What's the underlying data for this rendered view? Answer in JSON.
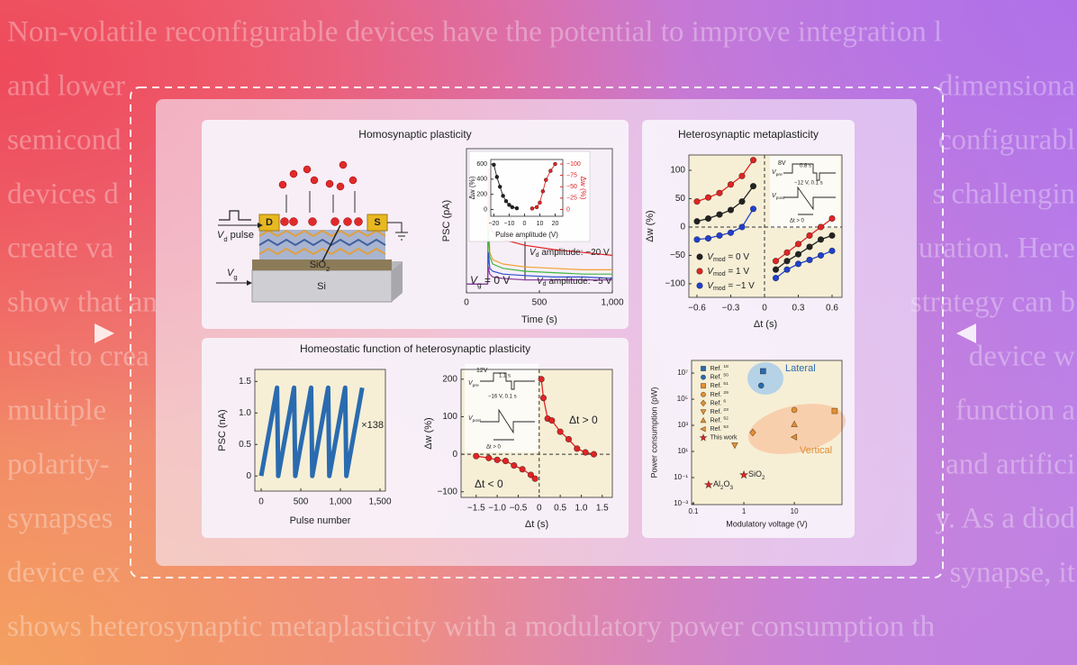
{
  "background_text": [
    [
      "Non-volatile reconfigurable devices have the potential to improve integration l"
    ],
    [
      "and lower",
      "dimensiona"
    ],
    [
      "semicond",
      "configurabl"
    ],
    [
      "devices d",
      "s challengin"
    ],
    [
      "create va",
      "uration. Here"
    ],
    [
      "show that an",
      "strategy can b"
    ],
    [
      "used to crea",
      "device w"
    ],
    [
      "multiple",
      "function a"
    ],
    [
      "polarity-",
      "and artifici"
    ],
    [
      "synapses",
      "y. As a diod"
    ],
    [
      "device ex",
      "synapse, it"
    ],
    [
      "shows heterosynaptic metaplasticity with a modulatory power consumption th"
    ]
  ],
  "panels": [
    {
      "title": "Homosynaptic plasticity",
      "color": "#d83a2a"
    },
    {
      "title": "Homeostatic function of heterosynaptic plasticity",
      "color": "#2060b0"
    },
    {
      "title": "Heterosynaptic metaplasticity",
      "color": "#2a8a3a"
    }
  ],
  "device_schematic": {
    "drain": "D",
    "source": "S",
    "drain_pulse": [
      {
        "i": "V"
      },
      {
        "sub": "d"
      },
      {
        "t": " pulse"
      }
    ],
    "gate": [
      {
        "i": "V"
      },
      {
        "sub": "g"
      }
    ],
    "oxide": [
      {
        "t": "SiO"
      },
      {
        "sub": "2"
      }
    ],
    "substrate": "Si"
  },
  "chart_data": [
    {
      "type": "line",
      "ylabel": "PSC (pA)",
      "xlabel": "Time (s)",
      "xlim": [
        0,
        1000
      ],
      "xticks": [
        0,
        500,
        {
          "value": 1000,
          "label": "1,000"
        }
      ],
      "ylim": [
        0,
        100
      ],
      "x": [
        0,
        145,
        150,
        160,
        180,
        250,
        400,
        600,
        800,
        1000
      ],
      "series": [
        {
          "color": "#e02424",
          "values": [
            6,
            6,
            86,
            48,
            42,
            37,
            33,
            30,
            28,
            26
          ]
        },
        {
          "color": "#f0a030",
          "values": [
            6,
            6,
            55,
            28,
            23,
            20,
            18,
            17,
            16,
            16
          ]
        },
        {
          "color": "#40b840",
          "values": [
            6,
            6,
            45,
            25,
            20,
            17,
            15,
            14,
            13,
            13
          ]
        },
        {
          "color": "#3050d0",
          "values": [
            6,
            6,
            28,
            17,
            15,
            13,
            12,
            11,
            11,
            10
          ]
        },
        {
          "color": "#9040a0",
          "values": [
            6,
            6,
            18,
            13,
            11,
            10,
            9,
            9,
            9,
            9
          ]
        }
      ],
      "annotations": [
        {
          "text": [
            {
              "i": "V"
            },
            {
              "sub": "g"
            },
            {
              "t": " = 0 V"
            }
          ]
        },
        {
          "text": [
            {
              "i": "V"
            },
            {
              "sub": "d"
            },
            {
              "t": " amplitude: −20 V"
            }
          ]
        },
        {
          "text": [
            {
              "i": "V"
            },
            {
              "sub": "d"
            },
            {
              "t": " amplitude: −5 V"
            }
          ]
        }
      ]
    },
    {
      "type": "line",
      "xlabel": "Pulse amplitude (V)",
      "ylabel": "Δw (%)",
      "y2label": "Δw (%)",
      "y2_color": "#e02424",
      "xlim": [
        -22,
        25
      ],
      "xticks": [
        {
          "value": -20,
          "label": "−20"
        },
        {
          "value": -10,
          "label": "−10"
        },
        0,
        10,
        20
      ],
      "ylim": [
        -90,
        660
      ],
      "yticks": [
        0,
        200,
        400,
        600
      ],
      "y2lim": [
        15,
        -110
      ],
      "y2ticks": [
        0,
        {
          "value": -25,
          "label": "−25"
        },
        {
          "value": -50,
          "label": "−50"
        },
        {
          "value": -75,
          "label": "−75"
        },
        {
          "value": -100,
          "label": "−100"
        }
      ],
      "series": [
        {
          "color": "#222222",
          "marker": "circle",
          "x": [
            -20,
            -18,
            -16,
            -14,
            -12,
            -10,
            -8,
            -5
          ],
          "values": [
            590,
            430,
            300,
            180,
            110,
            60,
            30,
            15
          ]
        },
        {
          "color": "#e02424",
          "marker": "circle",
          "axis": "y2",
          "x": [
            5,
            8,
            10,
            12,
            14,
            17,
            20
          ],
          "values": [
            -2,
            -5,
            -15,
            -40,
            -65,
            -85,
            -100
          ]
        }
      ]
    },
    {
      "type": "line",
      "ylabel": "PSC (nA)",
      "xlabel": "Pulse number",
      "background": "#f6efd6",
      "xlim": [
        -80,
        1568
      ],
      "xticks": [
        0,
        500,
        {
          "value": 1000,
          "label": "1,000"
        },
        {
          "value": 1500,
          "label": "1,500"
        }
      ],
      "ylim": [
        -0.24,
        1.69
      ],
      "yticks": [
        0,
        0.5,
        {
          "value": 1,
          "label": "1.0"
        },
        1.5
      ],
      "x": [
        0,
        200,
        215,
        415,
        430,
        630,
        645,
        845,
        860,
        1060,
        1075,
        1275
      ],
      "series": [
        {
          "color": "#2a6bb0",
          "values": [
            0,
            1.4,
            0,
            1.4,
            0,
            1.4,
            0,
            1.4,
            0,
            1.4,
            0,
            1.4
          ]
        }
      ],
      "annotations": [
        {
          "text": "×138"
        }
      ]
    },
    {
      "type": "line",
      "ylabel": "Δw (%)",
      "xlabel": "Δt (s)",
      "background": "#f6efd6",
      "zero_lines": true,
      "xlim": [
        -1.86,
        1.74
      ],
      "xticks": [
        {
          "value": -1.5,
          "label": "−1.5"
        },
        {
          "value": -1,
          "label": "−1.0"
        },
        {
          "value": -0.5,
          "label": "−0.5"
        },
        0,
        0.5,
        {
          "value": 1,
          "label": "1.0"
        },
        1.5
      ],
      "ylim": [
        -115,
        226
      ],
      "yticks": [
        200,
        100,
        0,
        {
          "value": -100,
          "label": "−100"
        }
      ],
      "series": [
        {
          "color": "#e02424",
          "marker": "circle",
          "x": [
            -1.5,
            -1.2,
            -1.0,
            -0.8,
            -0.6,
            -0.4,
            -0.2,
            -0.1
          ],
          "values": [
            -5,
            -10,
            -15,
            -18,
            -30,
            -40,
            -55,
            -65
          ]
        },
        {
          "color": "#e02424",
          "marker": "circle",
          "x": [
            0.05,
            0.1,
            0.2,
            0.3,
            0.5,
            0.7,
            0.9,
            1.1,
            1.3
          ],
          "values": [
            200,
            150,
            95,
            90,
            60,
            40,
            15,
            5,
            0
          ]
        }
      ],
      "annotations": [
        {
          "text": "Δt > 0"
        },
        {
          "text": "Δt < 0"
        },
        {
          "text": "12V"
        },
        {
          "text": "1.1 s"
        },
        {
          "text": [
            {
              "i": "V"
            },
            {
              "sub": "pre"
            }
          ]
        },
        {
          "text": "−16 V, 0.1 s"
        },
        {
          "text": [
            {
              "i": "V"
            },
            {
              "sub": "post"
            }
          ]
        },
        {
          "text": "Δt > 0"
        }
      ]
    },
    {
      "type": "line",
      "ylabel": "Δw (%)",
      "xlabel": "Δt (s)",
      "background": "#f6efd6",
      "zero_lines": true,
      "xlim": [
        -0.672,
        0.688
      ],
      "xticks": [
        {
          "value": -0.6,
          "label": "−0.6"
        },
        {
          "value": -0.3,
          "label": "−0.3"
        },
        0,
        0.3,
        0.6
      ],
      "ylim": [
        -124,
        127
      ],
      "yticks": [
        100,
        50,
        0,
        {
          "value": -50,
          "label": "−50"
        },
        {
          "value": -100,
          "label": "−100"
        }
      ],
      "x": [
        -0.6,
        -0.5,
        -0.4,
        -0.3,
        -0.2,
        -0.1,
        0,
        0.1,
        0.2,
        0.3,
        0.4,
        0.5,
        0.6
      ],
      "series": [
        {
          "name": [
            {
              "i": "V"
            },
            {
              "sub": "mod"
            },
            {
              "t": " = 0 V"
            }
          ],
          "color": "#222222",
          "marker": "circle",
          "values": [
            10,
            15,
            22,
            30,
            45,
            72,
            null,
            -75,
            -60,
            -48,
            -35,
            -22,
            -15
          ]
        },
        {
          "name": [
            {
              "i": "V"
            },
            {
              "sub": "mod"
            },
            {
              "t": " = 1 V"
            }
          ],
          "color": "#e02424",
          "marker": "circle",
          "values": [
            45,
            52,
            60,
            75,
            90,
            118,
            null,
            -60,
            -45,
            -30,
            -15,
            0,
            15
          ]
        },
        {
          "name": [
            {
              "i": "V"
            },
            {
              "sub": "mod"
            },
            {
              "t": " = −1 V"
            }
          ],
          "color": "#2040d0",
          "marker": "circle",
          "values": [
            -22,
            -20,
            -15,
            -10,
            0,
            32,
            null,
            -90,
            -75,
            -65,
            -58,
            -50,
            -42
          ]
        }
      ],
      "annotations": [
        {
          "text": "8V"
        },
        {
          "text": "0.8 s"
        },
        {
          "text": [
            {
              "i": "V"
            },
            {
              "sub": "pre"
            }
          ]
        },
        {
          "text": "−12 V, 0.1 s"
        },
        {
          "text": [
            {
              "i": "V"
            },
            {
              "sub": "post"
            }
          ]
        },
        {
          "text": "Δt > 0"
        }
      ]
    },
    {
      "type": "scatter",
      "ylabel": "Power consumption (pW)",
      "xlabel": "Modulatory voltage (V)",
      "background": "#f6efd6",
      "log_x": true,
      "log_y": true,
      "xlim": [
        0.092,
        88
      ],
      "xticks": [
        0.1,
        1,
        10
      ],
      "ylim": [
        0.00085,
        93000000
      ],
      "yticks": [
        {
          "value": 0.001,
          "label": "10⁻³"
        },
        {
          "value": 0.1,
          "label": "10⁻¹"
        },
        {
          "value": 10,
          "label": "10¹"
        },
        {
          "value": 1000,
          "label": "10³"
        },
        {
          "value": 100000,
          "label": "10⁵"
        },
        {
          "value": 10000000,
          "label": "10⁷"
        }
      ],
      "series": [
        {
          "name": [
            {
              "t": "Ref. "
            },
            {
              "sup": "18"
            }
          ],
          "color": "#2a6bb0",
          "marker": "square",
          "line": false,
          "x": [
            2.4
          ],
          "values": [
            14000000
          ]
        },
        {
          "name": [
            {
              "t": "Ref. "
            },
            {
              "sup": "50"
            }
          ],
          "color": "#2a6bb0",
          "marker": "circle",
          "line": false,
          "x": [
            2.2
          ],
          "values": [
            1100000
          ]
        },
        {
          "name": [
            {
              "t": "Ref. "
            },
            {
              "sup": "51"
            }
          ],
          "color": "#e89030",
          "marker": "square",
          "line": false,
          "x": [
            63
          ],
          "values": [
            12600
          ]
        },
        {
          "name": [
            {
              "t": "Ref. "
            },
            {
              "sup": "29"
            }
          ],
          "color": "#e89030",
          "marker": "circle",
          "line": false,
          "x": [
            10
          ],
          "values": [
            15000
          ]
        },
        {
          "name": [
            {
              "t": "Ref. "
            },
            {
              "sup": "6"
            }
          ],
          "color": "#e89030",
          "marker": "diamond",
          "line": false,
          "x": [
            1.5
          ],
          "values": [
            280
          ]
        },
        {
          "name": [
            {
              "t": "Ref. "
            },
            {
              "sup": "23"
            }
          ],
          "color": "#e89030",
          "marker": "triangle-down",
          "line": false,
          "x": [
            0.66
          ],
          "values": [
            30
          ]
        },
        {
          "name": [
            {
              "t": "Ref. "
            },
            {
              "sup": "52"
            }
          ],
          "color": "#e89030",
          "marker": "triangle-up",
          "line": false,
          "x": [
            10
          ],
          "values": [
            1200
          ]
        },
        {
          "name": [
            {
              "t": "Ref. "
            },
            {
              "sup": "53"
            }
          ],
          "color": "#e89030",
          "marker": "triangle-left",
          "line": false,
          "x": [
            10
          ],
          "values": [
            125
          ]
        },
        {
          "name": "This work",
          "color": "#e02424",
          "marker": "star",
          "line": false,
          "x": [
            1,
            0.2
          ],
          "values": [
            0.16,
            0.028
          ]
        }
      ],
      "annotations": [
        {
          "text": "Lateral",
          "color": "#2a6bb0"
        },
        {
          "text": "Vertical",
          "color": "#e08a30"
        },
        {
          "text": [
            {
              "t": "SiO"
            },
            {
              "sub": "2"
            }
          ]
        },
        {
          "text": [
            {
              "t": "Al"
            },
            {
              "sub": "2"
            },
            {
              "t": "O"
            },
            {
              "sub": "3"
            }
          ]
        }
      ]
    }
  ]
}
